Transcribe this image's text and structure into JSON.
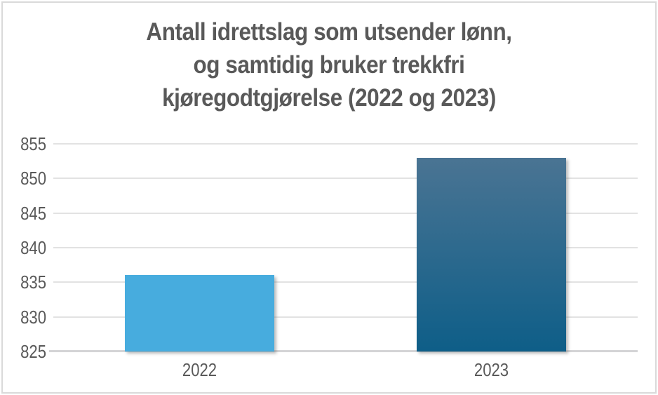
{
  "chart_data": {
    "type": "bar",
    "title": "Antall idrettslag som utsender lønn, og samtidig bruker trekkfri kjøregodtgjørelse (2022 og 2023)",
    "title_lines": [
      "Antall idrettslag som utsender lønn,",
      "og samtidig bruker trekkfri",
      "kjøregodtgjørelse (2022 og 2023)"
    ],
    "categories": [
      "2022",
      "2023"
    ],
    "values": [
      836,
      853
    ],
    "xlabel": "",
    "ylabel": "",
    "ylim": [
      825,
      855
    ],
    "ytick_step": 5,
    "yticks": [
      825,
      830,
      835,
      840,
      845,
      850,
      855
    ],
    "grid": true,
    "legend": "none",
    "colors": {
      "bar_2022_fill": "#47ACDE",
      "bar_2023_gradient_top": "#4A7493",
      "bar_2023_gradient_bottom": "#0E5E88",
      "title_text": "#595959",
      "axis_text": "#595959",
      "gridline": "#E2E2E2",
      "axis_line": "#D4D4D6",
      "frame_border": "#DADADA",
      "background": "#FFFFFF"
    }
  }
}
